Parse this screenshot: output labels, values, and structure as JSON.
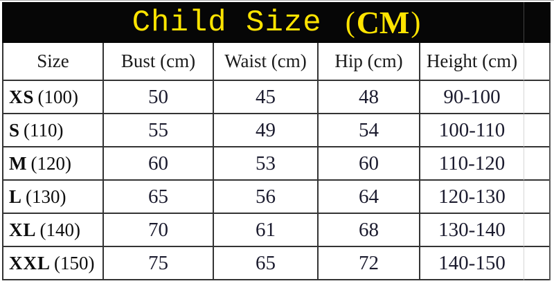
{
  "banner": {
    "title_main": "Child Size",
    "paren_open": "(",
    "title_unit": "CM",
    "paren_close": ")",
    "background_color": "#060606",
    "title_color": "#ffe400"
  },
  "chart_data": {
    "type": "table",
    "title": "Child Size (CM)",
    "columns": [
      "Size",
      "Bust (cm)",
      "Waist (cm)",
      "Hip (cm)",
      "Height (cm)"
    ],
    "rows": [
      {
        "size_abbr": "XS",
        "size_num": "(100)",
        "bust": 50,
        "waist": 45,
        "hip": 48,
        "height_range": "90-100"
      },
      {
        "size_abbr": "S",
        "size_num": "(110)",
        "bust": 55,
        "waist": 49,
        "hip": 54,
        "height_range": "100-110"
      },
      {
        "size_abbr": "M",
        "size_num": "(120)",
        "bust": 60,
        "waist": 53,
        "hip": 60,
        "height_range": "110-120"
      },
      {
        "size_abbr": "L",
        "size_num": "(130)",
        "bust": 65,
        "waist": 56,
        "hip": 64,
        "height_range": "120-130"
      },
      {
        "size_abbr": "XL",
        "size_num": "(140)",
        "bust": 70,
        "waist": 61,
        "hip": 68,
        "height_range": "130-140"
      },
      {
        "size_abbr": "XXL",
        "size_num": "(150)",
        "bust": 75,
        "waist": 65,
        "hip": 72,
        "height_range": "140-150"
      }
    ],
    "layout": {
      "grid": "on",
      "header_row": true,
      "units": "cm"
    }
  }
}
